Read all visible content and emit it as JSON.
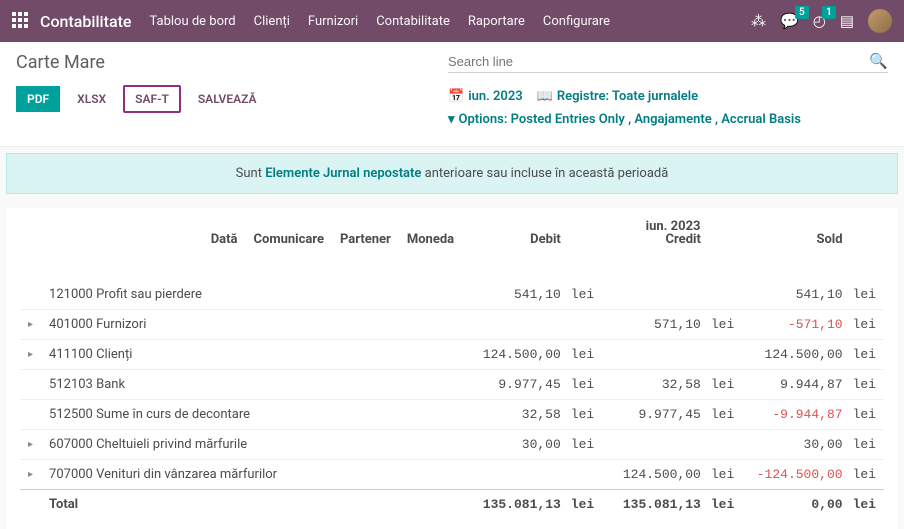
{
  "nav": {
    "brand": "Contabilitate",
    "menu": [
      "Tablou de bord",
      "Clienți",
      "Furnizori",
      "Contabilitate",
      "Raportare",
      "Configurare"
    ],
    "chat_badge": "5",
    "clock_badge": "1"
  },
  "cp": {
    "title": "Carte Mare",
    "search_placeholder": "Search line",
    "buttons": {
      "pdf": "PDF",
      "xlsx": "XLSX",
      "saft": "SAF-T",
      "save": "SALVEAZĂ"
    },
    "filter_period": "iun. 2023",
    "filter_journals_label": "Registre:",
    "filter_journals_value": "Toate jurnalele",
    "filter_options_label": "Options:",
    "filter_options_value": "Posted Entries Only , Angajamente , Accrual Basis"
  },
  "banner": {
    "prefix": "Sunt ",
    "bold": "Elemente Jurnal nepostate",
    "suffix": " anterioare sau incluse în această perioadă"
  },
  "report": {
    "period": "iun. 2023",
    "headers": {
      "date": "Dată",
      "comm": "Comunicare",
      "partner": "Partener",
      "currency": "Moneda",
      "debit": "Debit",
      "credit": "Credit",
      "balance": "Sold"
    },
    "currency": "lei",
    "rows": [
      {
        "expand": false,
        "name": "121000 Profit sau pierdere",
        "debit": "541,10",
        "credit": "",
        "balance": "541,10",
        "neg": false
      },
      {
        "expand": true,
        "name": "401000 Furnizori",
        "debit": "",
        "credit": "571,10",
        "balance": "-571,10",
        "neg": true
      },
      {
        "expand": true,
        "name": "411100 Clienți",
        "debit": "124.500,00",
        "credit": "",
        "balance": "124.500,00",
        "neg": false
      },
      {
        "expand": false,
        "name": "512103 Bank",
        "debit": "9.977,45",
        "credit": "32,58",
        "balance": "9.944,87",
        "neg": false
      },
      {
        "expand": false,
        "name": "512500 Sume în curs de decontare",
        "debit": "32,58",
        "credit": "9.977,45",
        "balance": "-9.944,87",
        "neg": true
      },
      {
        "expand": true,
        "name": "607000 Cheltuieli privind mărfurile",
        "debit": "30,00",
        "credit": "",
        "balance": "30,00",
        "neg": false
      },
      {
        "expand": true,
        "name": "707000 Venituri din vânzarea mărfurilor",
        "debit": "",
        "credit": "124.500,00",
        "balance": "-124.500,00",
        "neg": true
      }
    ],
    "total": {
      "label": "Total",
      "debit": "135.081,13",
      "credit": "135.081,13",
      "balance": "0,00"
    }
  }
}
